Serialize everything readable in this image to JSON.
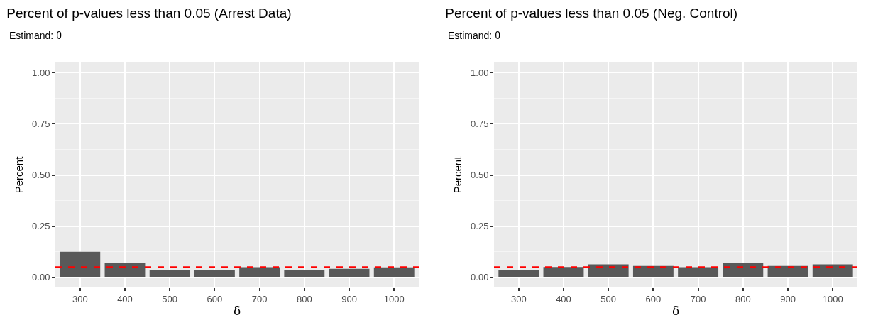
{
  "chart_data": [
    {
      "type": "bar",
      "title": "Percent of p-values less than 0.05 (Arrest Data)",
      "subtitle": "Estimand: θ",
      "xlabel": "δ",
      "ylabel": "Percent",
      "categories": [
        "300",
        "400",
        "500",
        "600",
        "700",
        "800",
        "900",
        "1000"
      ],
      "values": [
        0.124,
        0.069,
        0.034,
        0.034,
        0.049,
        0.034,
        0.041,
        0.048
      ],
      "color": "#595959",
      "ylim": [
        -0.05,
        1.05
      ],
      "yticks": [
        {
          "value": 0,
          "label": "0.00"
        },
        {
          "value": 0.25,
          "label": "0.25"
        },
        {
          "value": 0.5,
          "label": "0.50"
        },
        {
          "value": 0.75,
          "label": "0.75"
        },
        {
          "value": 1,
          "label": "1.00"
        }
      ],
      "ref_lines": [
        {
          "axis": "y",
          "value": 0.05,
          "color": "#ff0000",
          "line_style": "dashed"
        }
      ],
      "grid": true
    },
    {
      "type": "bar",
      "title": "Percent of p-values less than 0.05 (Neg. Control)",
      "subtitle": "Estimand: θ",
      "xlabel": "δ",
      "ylabel": "Percent",
      "categories": [
        "300",
        "400",
        "500",
        "600",
        "700",
        "800",
        "900",
        "1000"
      ],
      "values": [
        0.034,
        0.05,
        0.063,
        0.055,
        0.049,
        0.07,
        0.055,
        0.063
      ],
      "color": "#595959",
      "ylim": [
        -0.05,
        1.05
      ],
      "yticks": [
        {
          "value": 0,
          "label": "0.00"
        },
        {
          "value": 0.25,
          "label": "0.25"
        },
        {
          "value": 0.5,
          "label": "0.50"
        },
        {
          "value": 0.75,
          "label": "0.75"
        },
        {
          "value": 1,
          "label": "1.00"
        }
      ],
      "ref_lines": [
        {
          "axis": "y",
          "value": 0.05,
          "color": "#ff0000",
          "line_style": "dashed"
        }
      ],
      "grid": true
    }
  ]
}
